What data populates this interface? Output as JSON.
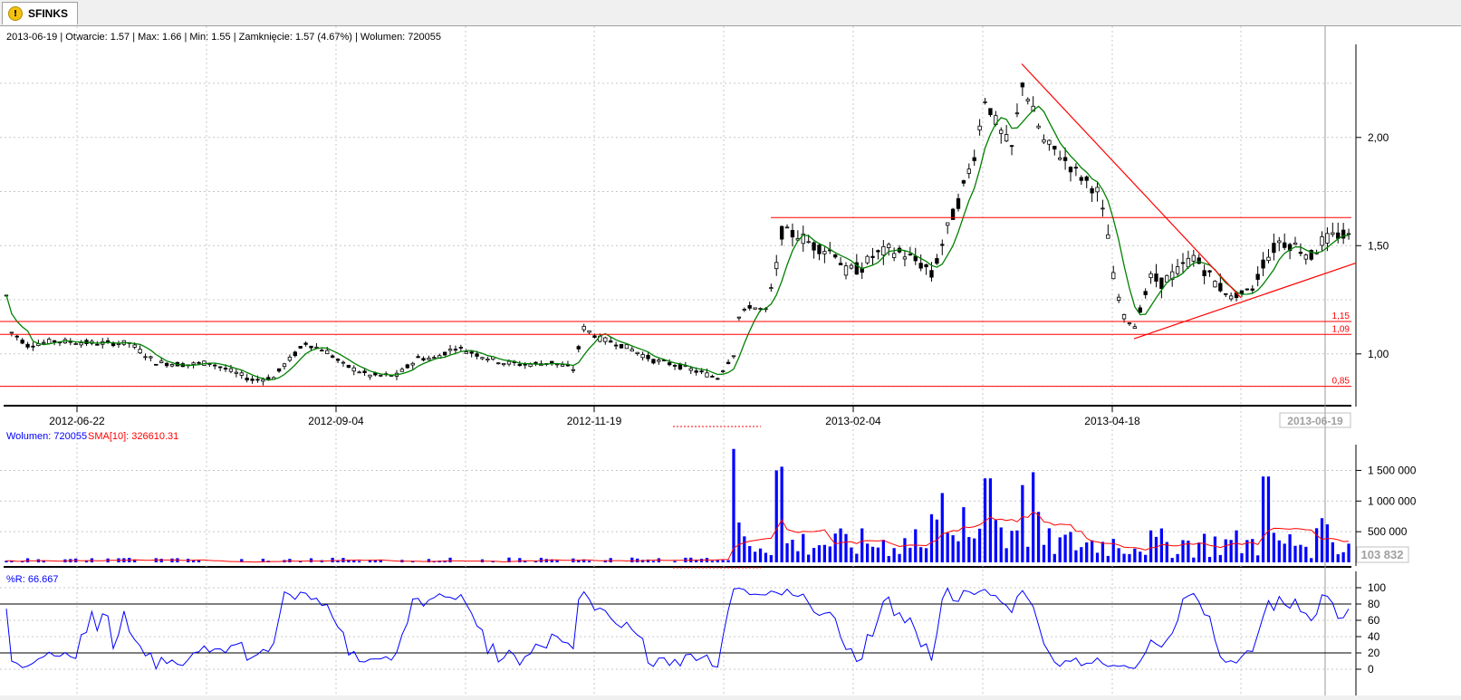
{
  "tab": {
    "label": "SFINKS",
    "icon": "warning-icon"
  },
  "info_bar": "2013-06-19 | Otwarcie: 1.57 | Max: 1.66 | Min: 1.55 | Zamknięcie: 1.57 (4.67%)  | Wolumen: 720055",
  "colors": {
    "candle": "#000000",
    "ma": "#008000",
    "trend": "#ff0000",
    "volume": "#0000ff",
    "volume_sma": "#ff0000",
    "williams": "#0000ff"
  },
  "chart_data": [
    {
      "type": "candlestick",
      "x_ticks": [
        "2012-06-22",
        "2012-09-04",
        "2012-11-19",
        "2013-02-04",
        "2013-04-18"
      ],
      "x_cursor_label": "2013-06-19",
      "y_ticks": [
        "1,00",
        "1,50",
        "2,00"
      ],
      "y_tick_values": [
        1.0,
        1.5,
        2.0
      ],
      "ylim": [
        0.79,
        2.43
      ],
      "levels": [
        {
          "value": 1.15,
          "label": "1,15"
        },
        {
          "value": 1.09,
          "label": "1,09"
        },
        {
          "value": 0.85,
          "label": "0,85"
        },
        {
          "value": 1.63,
          "label": ""
        }
      ],
      "last_close": 1.57,
      "overlay": "moving average (green)"
    },
    {
      "type": "bar",
      "legend": [
        "Wolumen: 720055",
        "SMA[10]: 326610.31"
      ],
      "y_ticks": [
        "500 000",
        "1 000 000",
        "1 500 000"
      ],
      "y_tick_values": [
        500000,
        1000000,
        1500000
      ],
      "ylim": [
        0,
        1920000
      ],
      "cursor_value": "103 832",
      "last_volume": 720055,
      "last_sma": 326610.31
    },
    {
      "type": "line",
      "legend": "%R: 66.667",
      "y_ticks": [
        "0",
        "20",
        "40",
        "60",
        "80",
        "100"
      ],
      "y_tick_values": [
        0,
        20,
        40,
        60,
        80,
        100
      ],
      "ylim": [
        0,
        100
      ],
      "bands": [
        20,
        80
      ],
      "last_value": 66.667
    }
  ]
}
